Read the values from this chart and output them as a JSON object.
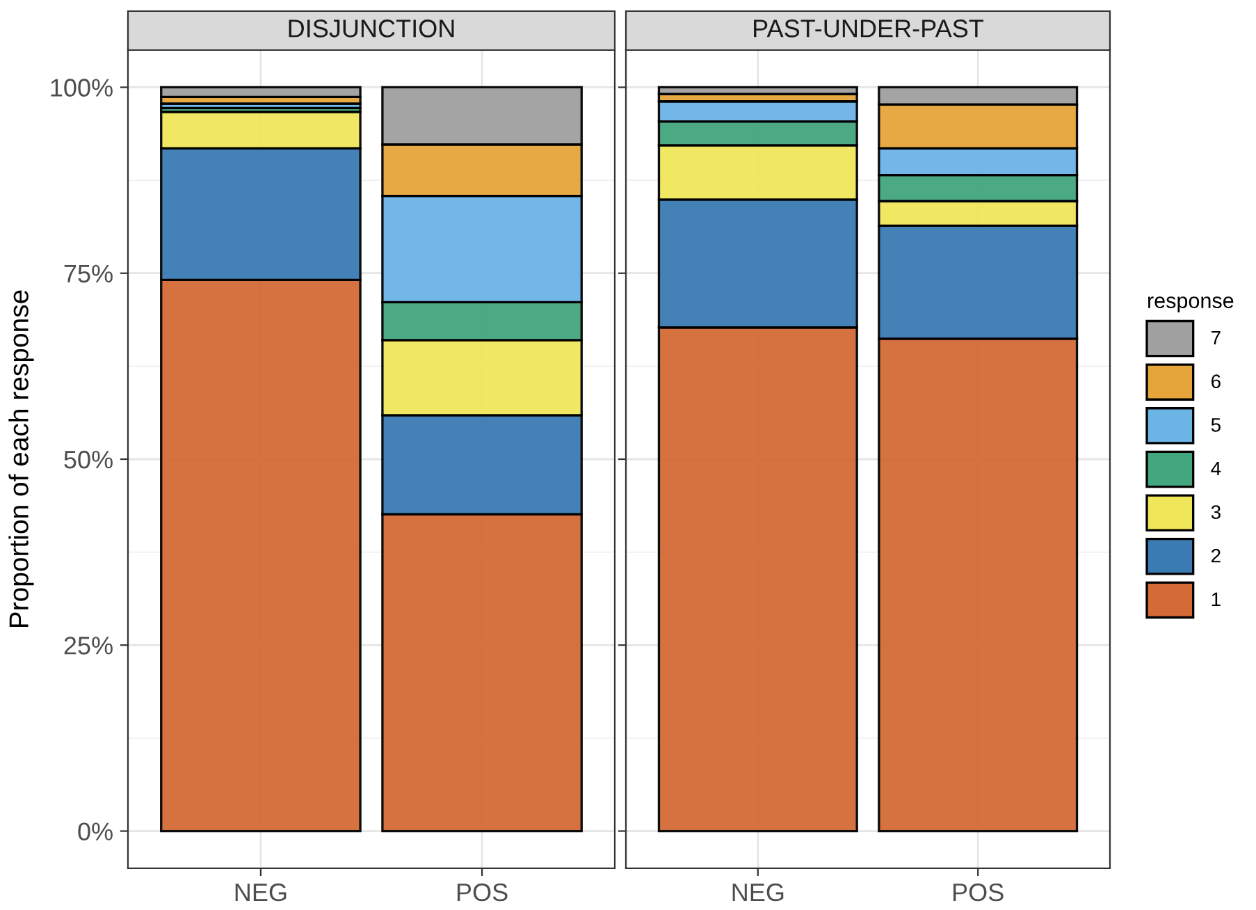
{
  "chart_data": [
    {
      "type": "bar",
      "title": "DISJUNCTION",
      "ylabel": "Proportion of each response",
      "categories": [
        "NEG",
        "POS"
      ],
      "stacked": true,
      "grid": true,
      "legend": "right",
      "legend_title": "response",
      "ylim": [
        -5,
        105
      ],
      "yticks": [
        {
          "value": 0,
          "label": "0%"
        },
        {
          "value": 25,
          "label": "25%"
        },
        {
          "value": 50,
          "label": "50%"
        },
        {
          "value": 75,
          "label": "75%"
        },
        {
          "value": 100,
          "label": "100%"
        }
      ],
      "series": [
        {
          "name": "1",
          "color": "#d46a36",
          "values": [
            74.1,
            42.6
          ]
        },
        {
          "name": "2",
          "color": "#3a7bb3",
          "values": [
            17.7,
            13.3
          ]
        },
        {
          "name": "3",
          "color": "#f0e65a",
          "values": [
            4.9,
            10.1
          ]
        },
        {
          "name": "4",
          "color": "#42a67e",
          "values": [
            0.5,
            5.1
          ]
        },
        {
          "name": "5",
          "color": "#6bb4e6",
          "values": [
            0.6,
            14.3
          ]
        },
        {
          "name": "6",
          "color": "#e5a53a",
          "values": [
            0.9,
            6.9
          ]
        },
        {
          "name": "7",
          "color": "#a0a0a0",
          "values": [
            1.3,
            7.7
          ]
        }
      ]
    },
    {
      "type": "bar",
      "title": "PAST-UNDER-PAST",
      "categories": [
        "NEG",
        "POS"
      ],
      "stacked": true,
      "grid": true,
      "tick_labels": "x",
      "ylim": [
        -5,
        105
      ],
      "yticks": [
        {
          "value": 0,
          "label": null
        },
        {
          "value": 25,
          "label": null
        },
        {
          "value": 50,
          "label": null
        },
        {
          "value": 75,
          "label": null
        },
        {
          "value": 100,
          "label": null
        }
      ],
      "series": [
        {
          "name": "1",
          "color": "#d46a36",
          "values": [
            67.7,
            66.2
          ]
        },
        {
          "name": "2",
          "color": "#3a7bb3",
          "values": [
            17.2,
            15.2
          ]
        },
        {
          "name": "3",
          "color": "#f0e65a",
          "values": [
            7.3,
            3.3
          ]
        },
        {
          "name": "4",
          "color": "#42a67e",
          "values": [
            3.2,
            3.5
          ]
        },
        {
          "name": "5",
          "color": "#6bb4e6",
          "values": [
            2.7,
            3.6
          ]
        },
        {
          "name": "6",
          "color": "#e5a53a",
          "values": [
            1.0,
            5.9
          ]
        },
        {
          "name": "7",
          "color": "#a0a0a0",
          "values": [
            0.9,
            2.3
          ]
        }
      ]
    }
  ]
}
